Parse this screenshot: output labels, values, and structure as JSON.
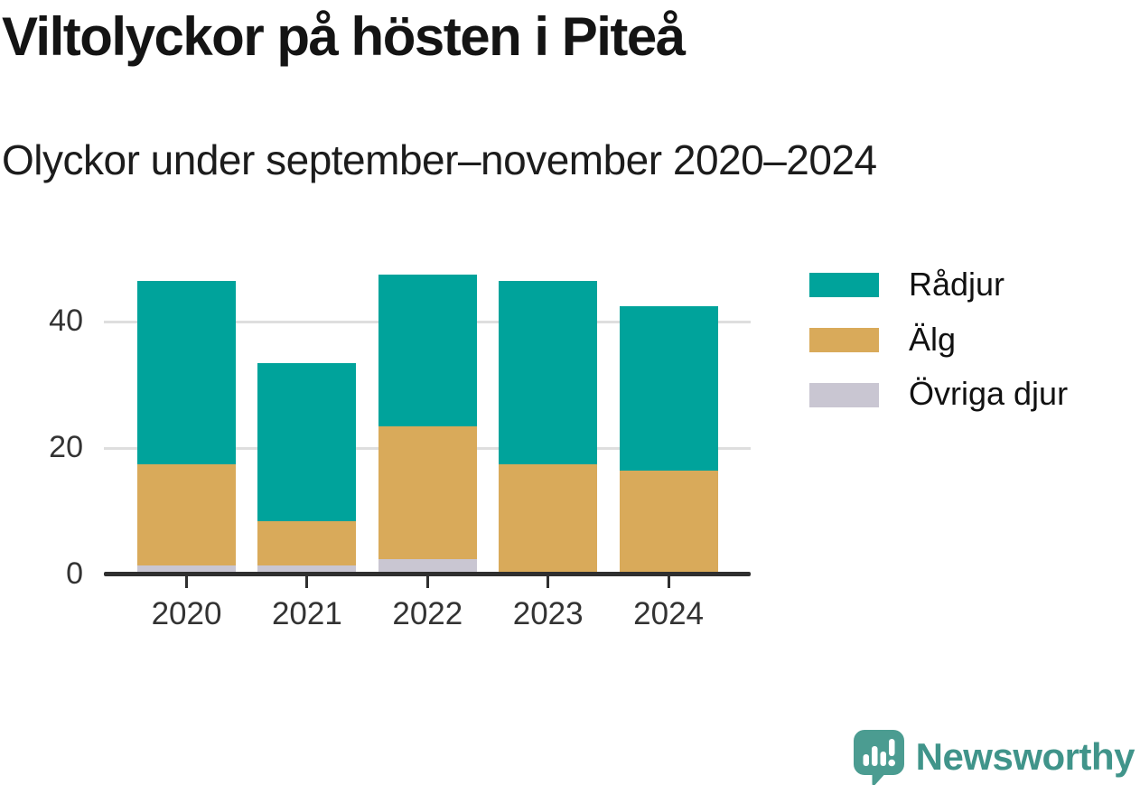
{
  "title": "Viltolyckor på hösten i Piteå",
  "subtitle": "Olyckor under september–november 2020–2024",
  "chart_data": {
    "type": "bar",
    "stacked": true,
    "title": "Viltolyckor på hösten i Piteå",
    "subtitle": "Olyckor under september–november 2020–2024",
    "categories": [
      "2020",
      "2021",
      "2022",
      "2023",
      "2024"
    ],
    "series": [
      {
        "name": "Rådjur",
        "color": "#00a39b",
        "values": [
          29,
          25,
          24,
          29,
          26
        ]
      },
      {
        "name": "Älg",
        "color": "#d9aa5a",
        "values": [
          16,
          7,
          21,
          17,
          16
        ]
      },
      {
        "name": "Övriga djur",
        "color": "#c9c6d2",
        "values": [
          1,
          1,
          2,
          0,
          0
        ]
      }
    ],
    "stack_totals": [
      46,
      33,
      47,
      46,
      42
    ],
    "xlabel": "",
    "ylabel": "",
    "ylim": [
      0,
      48
    ],
    "yticks": [
      0,
      20,
      40
    ],
    "grid": "horizontal-light",
    "legend_position": "right",
    "axis_color": "#2f2f2f",
    "grid_color": "#dedede",
    "tick_label_color": "#333333"
  },
  "branding": {
    "logo_text": "Newsworthy",
    "logo_icon": "bar-chart-speech-bubble-icon",
    "logo_color": "#4b9c91",
    "logo_text_color": "#40948a"
  }
}
